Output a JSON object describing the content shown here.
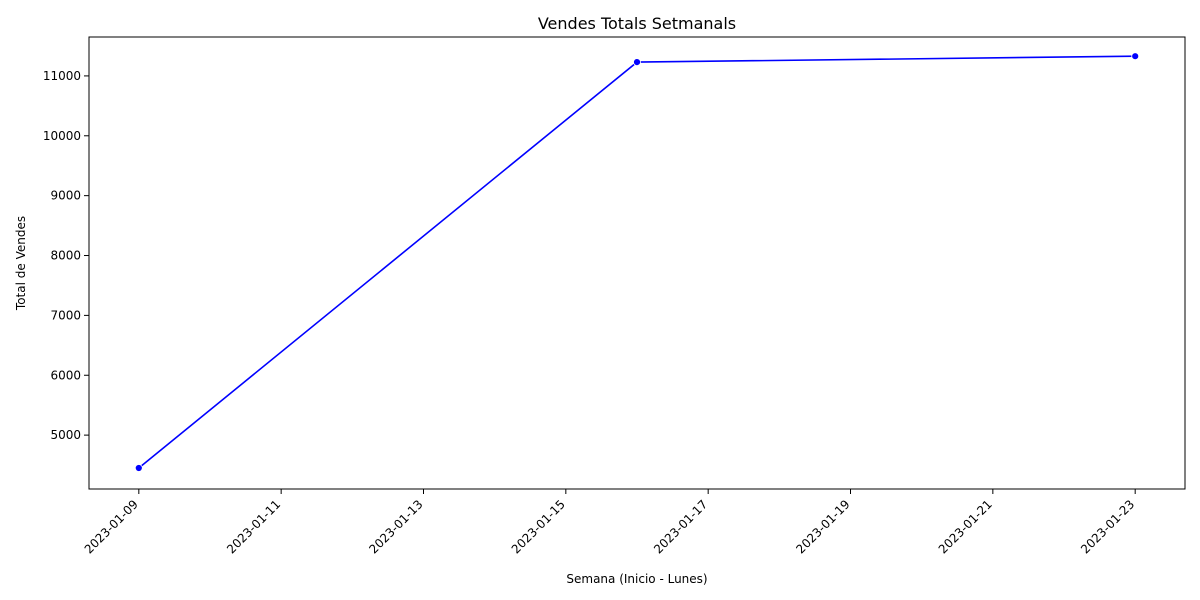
{
  "chart_data": {
    "type": "line",
    "title": "Vendes Totals Setmanals",
    "xlabel": "Semana (Inicio - Lunes)",
    "ylabel": "Total de Vendes",
    "x_tick_labels": [
      "2023-01-09",
      "2023-01-11",
      "2023-01-13",
      "2023-01-15",
      "2023-01-17",
      "2023-01-19",
      "2023-01-21",
      "2023-01-23"
    ],
    "y_tick_labels": [
      "5000",
      "6000",
      "7000",
      "8000",
      "9000",
      "10000",
      "11000"
    ],
    "y_ticks": [
      5000,
      6000,
      7000,
      8000,
      9000,
      10000,
      11000
    ],
    "xlim": [
      "2023-01-08",
      "2023-01-23"
    ],
    "ylim": [
      4100,
      11650
    ],
    "grid": false,
    "series": [
      {
        "x": [
          "2023-01-09",
          "2023-01-16",
          "2023-01-23"
        ],
        "values": [
          4450,
          11230,
          11330
        ],
        "color": "#0000ff",
        "marker": "circle"
      }
    ]
  }
}
